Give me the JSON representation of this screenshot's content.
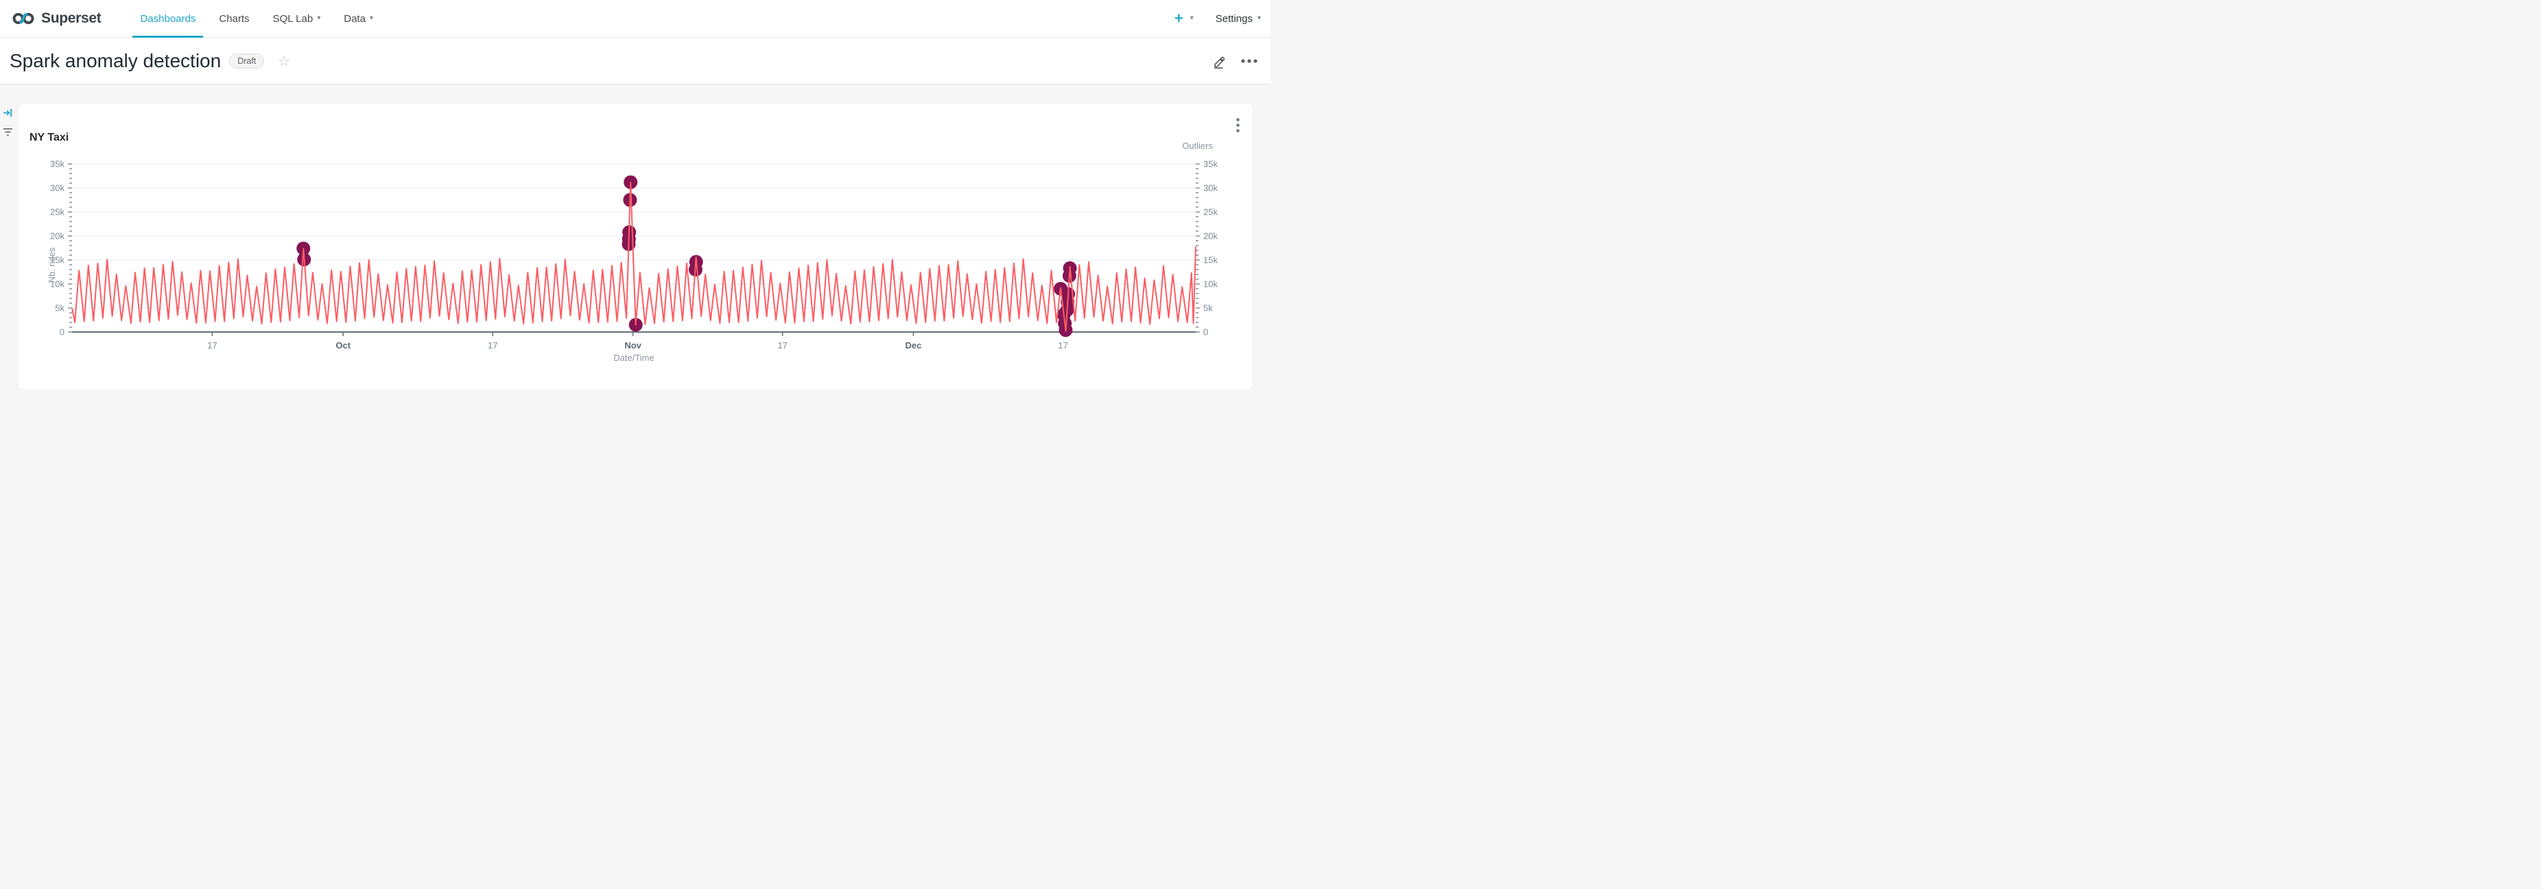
{
  "nav": {
    "brand": "Superset",
    "items": [
      {
        "label": "Dashboards",
        "active": true,
        "caret": false
      },
      {
        "label": "Charts",
        "active": false,
        "caret": false
      },
      {
        "label": "SQL Lab",
        "active": false,
        "caret": true
      },
      {
        "label": "Data",
        "active": false,
        "caret": true
      }
    ],
    "plus_label": "+",
    "settings_label": "Settings",
    "caret_glyph": "▾"
  },
  "titlebar": {
    "title": "Spark anomaly detection",
    "badge": "Draft",
    "star_glyph": "☆"
  },
  "card": {
    "title": "NY Taxi"
  },
  "chart_data": {
    "type": "line",
    "title": "NY Taxi",
    "xlabel": "Date/Time",
    "ylabel": "Nb. rides",
    "y2label": "Outliers",
    "grid": true,
    "legend_position": "top-right",
    "value_unit": "rides (thousands)",
    "x_domain_days": [
      0,
      120.2
    ],
    "x_ticks": [
      {
        "day": 15,
        "label": "17",
        "bold": false
      },
      {
        "day": 29,
        "label": "Oct",
        "bold": true
      },
      {
        "day": 45,
        "label": "17",
        "bold": false
      },
      {
        "day": 60,
        "label": "Nov",
        "bold": true
      },
      {
        "day": 76,
        "label": "17",
        "bold": false
      },
      {
        "day": 90,
        "label": "Dec",
        "bold": true
      },
      {
        "day": 106,
        "label": "17",
        "bold": false
      }
    ],
    "y_axis": {
      "min": 0,
      "max": 35,
      "major_step": 5,
      "minor_step": 1,
      "labels": [
        "0",
        "5k",
        "10k",
        "15k",
        "20k",
        "25k",
        "30k",
        "35k"
      ]
    },
    "colors": {
      "line": "#FC5D63",
      "outlier": "#851553",
      "grid": "#e6eaf1",
      "axis_line": "#646d75",
      "tick": "#4d5660",
      "tick_label": "#7f8a94",
      "month_label": "#5e6973",
      "axis_title": "#8c94a0"
    },
    "series": [
      {
        "name": "rides",
        "kind": "line",
        "lead_point": [
          0,
          5.0
        ],
        "daily_troughs": [
          2.0,
          2.2,
          2.3,
          2.9,
          3.3,
          2.4,
          1.8,
          2.1,
          2.0,
          2.4,
          2.7,
          3.5,
          2.6,
          1.9,
          1.9,
          2.2,
          2.2,
          2.8,
          3.2,
          2.3,
          1.7,
          2.0,
          2.1,
          2.4,
          3.0,
          3.4,
          2.5,
          1.8,
          2.2,
          2.0,
          2.3,
          2.8,
          3.1,
          2.4,
          1.9,
          2.0,
          2.3,
          2.2,
          2.9,
          3.3,
          2.6,
          1.8,
          2.1,
          2.1,
          2.4,
          2.7,
          3.2,
          2.3,
          1.7,
          1.9,
          2.2,
          2.3,
          2.8,
          3.4,
          2.5,
          1.9,
          2.0,
          2.1,
          2.2,
          2.9,
          1.5,
          1.6,
          1.8,
          2.1,
          2.2,
          2.4,
          2.8,
          3.3,
          2.4,
          1.8,
          2.0,
          2.0,
          2.3,
          2.9,
          3.2,
          2.5,
          1.9,
          1.9,
          2.2,
          2.2,
          2.7,
          3.4,
          2.3,
          1.7,
          2.1,
          2.1,
          2.4,
          2.8,
          3.1,
          2.4,
          1.8,
          2.0,
          2.3,
          2.3,
          2.9,
          3.3,
          2.6,
          1.9,
          2.2,
          2.0,
          2.2,
          2.8,
          3.2,
          2.4,
          1.8,
          2.0,
          0.2,
          2.3,
          2.9,
          3.1,
          2.3,
          1.7,
          2.1,
          2.2,
          1.9,
          1.6,
          2.8,
          3.0,
          2.2,
          2.0
        ],
        "daily_peaks": [
          12.8,
          13.9,
          14.3,
          15.1,
          12.0,
          9.6,
          12.4,
          13.3,
          13.4,
          14.0,
          14.7,
          12.5,
          10.2,
          12.8,
          12.7,
          13.8,
          14.5,
          15.2,
          11.8,
          9.5,
          12.3,
          13.1,
          13.5,
          14.2,
          17.4,
          12.4,
          10.0,
          12.9,
          12.6,
          13.7,
          14.4,
          15.0,
          12.1,
          9.8,
          12.5,
          13.2,
          13.6,
          13.9,
          14.8,
          12.3,
          10.1,
          12.7,
          12.9,
          14.0,
          14.6,
          15.3,
          11.9,
          9.7,
          12.4,
          13.4,
          13.5,
          14.2,
          15.1,
          12.6,
          10.0,
          12.8,
          13.0,
          13.8,
          14.5,
          31.2,
          12.4,
          9.2,
          12.2,
          13.1,
          13.7,
          14.3,
          15.6,
          12.0,
          9.9,
          12.6,
          12.8,
          13.5,
          14.1,
          14.9,
          12.4,
          10.1,
          12.5,
          13.3,
          13.9,
          14.4,
          15.0,
          12.2,
          9.6,
          12.7,
          12.9,
          13.6,
          14.2,
          15.1,
          12.5,
          9.8,
          12.4,
          13.2,
          13.8,
          14.0,
          14.8,
          12.1,
          10.0,
          12.6,
          13.0,
          13.4,
          14.3,
          15.2,
          12.3,
          9.7,
          12.8,
          9.2,
          13.6,
          14.0,
          14.6,
          11.8,
          9.5,
          12.3,
          13.1,
          13.5,
          11.2,
          10.8,
          13.8,
          12.0,
          9.4,
          12.3
        ],
        "trough_phase": 0.3,
        "peak_phase": 0.75,
        "tail_points": [
          [
            119.95,
            1.8
          ],
          [
            120.2,
            17.8
          ]
        ]
      },
      {
        "name": "Outliers",
        "kind": "scatter",
        "points": [
          [
            24.75,
            17.4
          ],
          [
            24.82,
            15.1
          ],
          [
            59.55,
            18.3
          ],
          [
            59.57,
            19.4
          ],
          [
            59.6,
            20.8
          ],
          [
            59.69,
            27.5
          ],
          [
            59.75,
            31.2
          ],
          [
            60.3,
            1.5
          ],
          [
            66.7,
            13.0
          ],
          [
            66.76,
            14.6
          ],
          [
            105.75,
            9.0
          ],
          [
            106.09,
            3.6
          ],
          [
            106.2,
            1.8
          ],
          [
            106.29,
            0.4
          ],
          [
            106.45,
            4.6
          ],
          [
            106.5,
            6.3
          ],
          [
            106.56,
            7.9
          ],
          [
            106.69,
            11.7
          ],
          [
            106.74,
            13.3
          ]
        ]
      }
    ]
  }
}
